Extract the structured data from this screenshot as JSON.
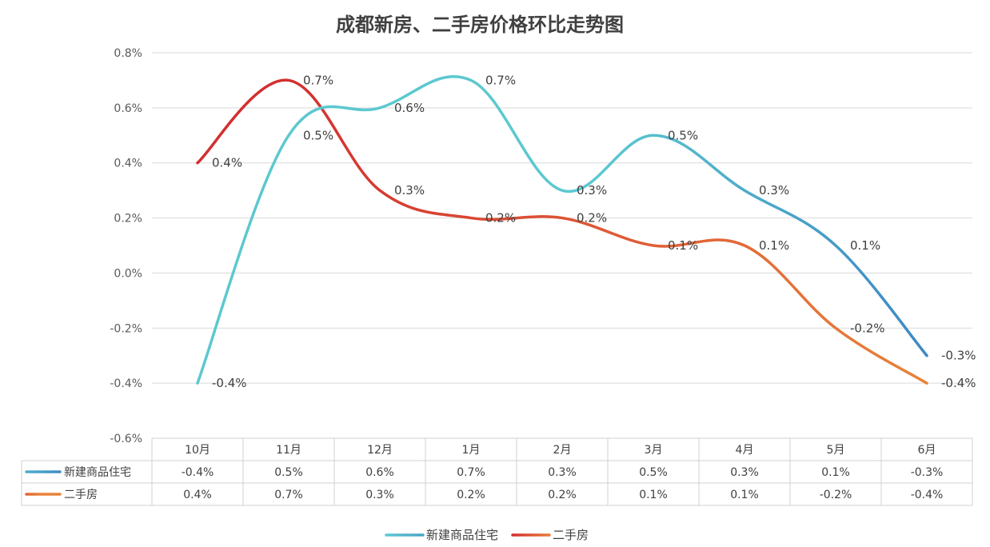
{
  "chart_data": {
    "type": "line",
    "title": "成都新房、二手房价格环比走势图",
    "categories": [
      "10月",
      "11月",
      "12月",
      "1月",
      "2月",
      "3月",
      "4月",
      "5月",
      "6月"
    ],
    "series": [
      {
        "name": "新建商品住宅",
        "values": [
          -0.4,
          0.5,
          0.6,
          0.7,
          0.3,
          0.5,
          0.3,
          0.1,
          -0.3
        ],
        "labels": [
          "-0.4%",
          "0.5%",
          "0.6%",
          "0.7%",
          "0.3%",
          "0.5%",
          "0.3%",
          "0.1%",
          "-0.3%"
        ],
        "color_start": "#5cc8d0",
        "color_end": "#3d88c4"
      },
      {
        "name": "二手房",
        "values": [
          0.4,
          0.7,
          0.3,
          0.2,
          0.2,
          0.1,
          0.1,
          -0.2,
          -0.4
        ],
        "labels": [
          "0.4%",
          "0.7%",
          "0.3%",
          "0.2%",
          "0.2%",
          "0.1%",
          "0.1%",
          "-0.2%",
          "-0.4%"
        ],
        "color_start": "#d32f2f",
        "color_end": "#e8833a"
      }
    ],
    "ylim": [
      -0.6,
      0.8
    ],
    "yticks": [
      "-0.6%",
      "-0.4%",
      "-0.2%",
      "0.0%",
      "0.2%",
      "0.4%",
      "0.6%",
      "0.8%"
    ],
    "grid": true,
    "legend": "bottom",
    "data_table": true
  }
}
